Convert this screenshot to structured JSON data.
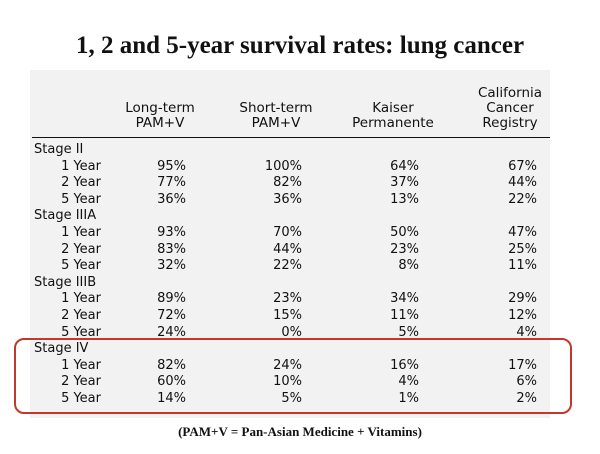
{
  "slide": {
    "title": "1, 2 and 5-year survival rates: lung cancer",
    "footnote": "(PAM+V = Pan-Asian Medicine + Vitamins)"
  },
  "table": {
    "headers": [
      "Long-term\nPAM+V",
      "Short-term\nPAM+V",
      "Kaiser\nPermanente",
      "California\nCancer\nRegistry"
    ],
    "groups": [
      {
        "stage": "Stage II",
        "rows": [
          {
            "year": "1 Year",
            "values": [
              "95%",
              "100%",
              "64%",
              "67%"
            ]
          },
          {
            "year": "2 Year",
            "values": [
              "77%",
              "82%",
              "37%",
              "44%"
            ]
          },
          {
            "year": "5 Year",
            "values": [
              "36%",
              "36%",
              "13%",
              "22%"
            ]
          }
        ]
      },
      {
        "stage": "Stage IIIA",
        "rows": [
          {
            "year": "1 Year",
            "values": [
              "93%",
              "70%",
              "50%",
              "47%"
            ]
          },
          {
            "year": "2 Year",
            "values": [
              "83%",
              "44%",
              "23%",
              "25%"
            ]
          },
          {
            "year": "5 Year",
            "values": [
              "32%",
              "22%",
              "8%",
              "11%"
            ]
          }
        ]
      },
      {
        "stage": "Stage IIIB",
        "rows": [
          {
            "year": "1 Year",
            "values": [
              "89%",
              "23%",
              "34%",
              "29%"
            ]
          },
          {
            "year": "2 Year",
            "values": [
              "72%",
              "15%",
              "11%",
              "12%"
            ]
          },
          {
            "year": "5 Year",
            "values": [
              "24%",
              "0%",
              "5%",
              "4%"
            ]
          }
        ]
      },
      {
        "stage": "Stage IV",
        "rows": [
          {
            "year": "1 Year",
            "values": [
              "82%",
              "24%",
              "16%",
              "17%"
            ]
          },
          {
            "year": "2 Year",
            "values": [
              "60%",
              "10%",
              "4%",
              "6%"
            ]
          },
          {
            "year": "5 Year",
            "values": [
              "14%",
              "5%",
              "1%",
              "2%"
            ]
          }
        ]
      }
    ]
  },
  "colors": {
    "highlight_border": "#c0392b",
    "table_background": "#f2f2f2"
  }
}
